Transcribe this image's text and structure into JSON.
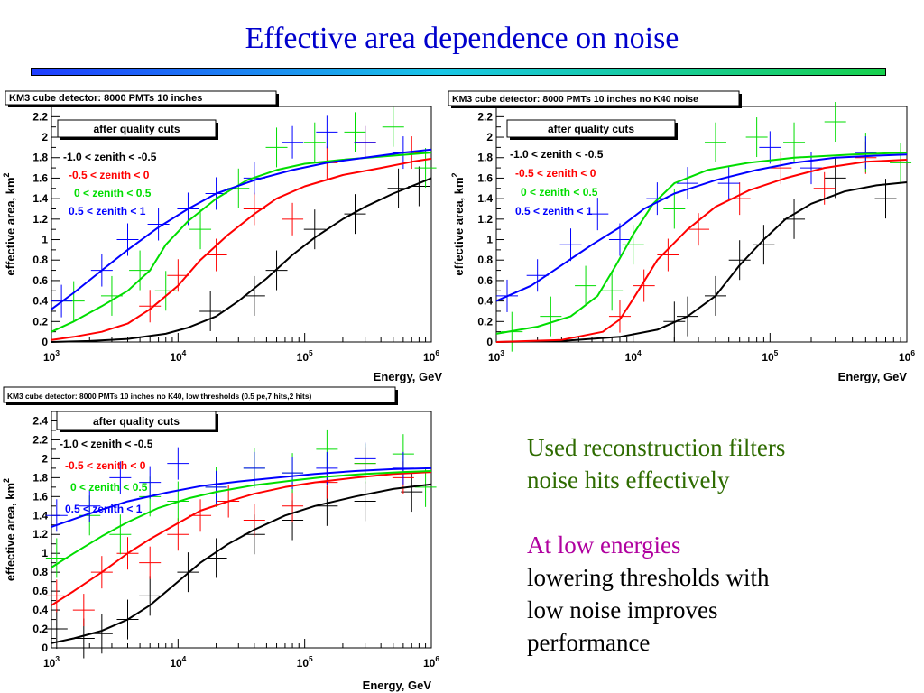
{
  "slide": {
    "title": "Effective area dependence on noise",
    "colors": {
      "title": "#0000cc",
      "bar_start": "#1e3cff",
      "bar_end": "#17d04c"
    }
  },
  "notes": {
    "line1": "Used reconstruction filters",
    "line2": "noise hits effectively",
    "line3": "At low energies",
    "line4": "lowering thresholds with",
    "line5": "low noise improves",
    "line6": "performance",
    "colors": {
      "main": "#2e6b00",
      "highlight": "#b0009f"
    }
  },
  "chart_data": [
    {
      "type": "line",
      "title": "KM3 cube detector: 8000 PMTs 10 inches",
      "box_label": "after quality cuts",
      "xlabel": "Energy, GeV",
      "ylabel": "effective area, km",
      "ylabel_sup": "2",
      "xscale": "log",
      "xlim": [
        1000,
        1000000
      ],
      "ylim": [
        0,
        2.3
      ],
      "xticks": [
        {
          "v": 1000,
          "m": "10",
          "e": "3"
        },
        {
          "v": 10000,
          "m": "10",
          "e": "4"
        },
        {
          "v": 100000,
          "m": "10",
          "e": "5"
        },
        {
          "v": 1000000,
          "m": "10",
          "e": "6"
        }
      ],
      "yticks": [
        0,
        0.2,
        0.4,
        0.6,
        0.8,
        1,
        1.2,
        1.4,
        1.6,
        1.8,
        2,
        2.2
      ],
      "series": [
        {
          "name": "-1.0 < zenith < -0.5",
          "color": "#000000",
          "x": [
            1000,
            2000,
            4000,
            8000,
            12000,
            20000,
            30000,
            50000,
            80000,
            120000,
            200000,
            300000,
            500000,
            800000,
            1000000
          ],
          "y": [
            0,
            0.01,
            0.03,
            0.08,
            0.14,
            0.25,
            0.4,
            0.62,
            0.85,
            1.02,
            1.2,
            1.32,
            1.45,
            1.55,
            1.6
          ],
          "points_x": [
            18000,
            40000,
            60000,
            120000,
            250000,
            550000,
            800000
          ],
          "points_y": [
            0.3,
            0.45,
            0.7,
            1.1,
            1.25,
            1.5,
            1.52
          ]
        },
        {
          "name": "-0.5 < zenith < 0",
          "color": "#ff0000",
          "x": [
            1000,
            1500,
            2500,
            4000,
            6000,
            10000,
            15000,
            25000,
            40000,
            60000,
            100000,
            200000,
            400000,
            700000,
            1000000
          ],
          "y": [
            0.02,
            0.05,
            0.1,
            0.18,
            0.32,
            0.55,
            0.8,
            1.05,
            1.25,
            1.4,
            1.52,
            1.63,
            1.7,
            1.76,
            1.79
          ],
          "points_x": [
            6000,
            10000,
            20000,
            40000,
            80000,
            150000,
            300000,
            700000
          ],
          "points_y": [
            0.35,
            0.65,
            0.85,
            1.3,
            1.2,
            1.75,
            1.95,
            1.85
          ]
        },
        {
          "name": "0 < zenith < 0.5",
          "color": "#00dd00",
          "x": [
            1000,
            1500,
            2500,
            4000,
            6000,
            8000,
            12000,
            20000,
            35000,
            60000,
            100000,
            200000,
            500000,
            1000000
          ],
          "y": [
            0.1,
            0.2,
            0.35,
            0.5,
            0.7,
            0.95,
            1.18,
            1.4,
            1.58,
            1.68,
            1.74,
            1.78,
            1.82,
            1.85
          ],
          "points_x": [
            1500,
            3000,
            5000,
            8000,
            15000,
            30000,
            60000,
            120000,
            250000,
            500000,
            900000
          ],
          "points_y": [
            0.4,
            0.45,
            0.7,
            0.5,
            1.1,
            1.5,
            1.9,
            1.95,
            2.05,
            2.1,
            1.7
          ]
        },
        {
          "name": "0.5 < zenith < 1",
          "color": "#0000ff",
          "x": [
            1000,
            1500,
            2500,
            4000,
            7000,
            12000,
            20000,
            40000,
            80000,
            150000,
            300000,
            600000,
            1000000
          ],
          "y": [
            0.32,
            0.48,
            0.7,
            0.9,
            1.12,
            1.3,
            1.45,
            1.58,
            1.68,
            1.75,
            1.8,
            1.85,
            1.88
          ],
          "points_x": [
            1200,
            2500,
            4000,
            7000,
            12000,
            20000,
            40000,
            80000,
            150000,
            300000,
            600000
          ],
          "points_y": [
            0.4,
            0.7,
            1.0,
            1.15,
            1.3,
            1.45,
            1.6,
            1.95,
            2.05,
            1.95,
            1.85
          ]
        }
      ]
    },
    {
      "type": "line",
      "title": "KM3 cube detector: 8000 PMTs 10 inches no K40 noise",
      "box_label": "after quality cuts",
      "xlabel": "Energy, GeV",
      "ylabel": "effective area, km",
      "ylabel_sup": "2",
      "xscale": "log",
      "xlim": [
        1000,
        1000000
      ],
      "ylim": [
        0,
        2.3
      ],
      "xticks": [
        {
          "v": 1000,
          "m": "10",
          "e": "3"
        },
        {
          "v": 10000,
          "m": "10",
          "e": "4"
        },
        {
          "v": 100000,
          "m": "10",
          "e": "5"
        },
        {
          "v": 1000000,
          "m": "10",
          "e": "6"
        }
      ],
      "yticks": [
        0,
        0.2,
        0.4,
        0.6,
        0.8,
        1,
        1.2,
        1.4,
        1.6,
        1.8,
        2,
        2.2
      ],
      "series": [
        {
          "name": "-1.0 < zenith < -0.5",
          "color": "#000000",
          "x": [
            1000,
            3000,
            8000,
            15000,
            25000,
            40000,
            60000,
            90000,
            130000,
            200000,
            350000,
            600000,
            1000000
          ],
          "y": [
            0,
            0.01,
            0.05,
            0.12,
            0.25,
            0.45,
            0.75,
            1.0,
            1.2,
            1.35,
            1.47,
            1.53,
            1.56
          ],
          "points_x": [
            20000,
            25000,
            40000,
            60000,
            90000,
            150000,
            300000,
            700000
          ],
          "points_y": [
            0.2,
            0.25,
            0.45,
            0.8,
            0.95,
            1.2,
            1.6,
            1.4
          ]
        },
        {
          "name": "-0.5 < zenith < 0",
          "color": "#ff0000",
          "x": [
            1000,
            3000,
            6000,
            8000,
            10000,
            15000,
            25000,
            40000,
            70000,
            130000,
            250000,
            500000,
            1000000
          ],
          "y": [
            0,
            0.02,
            0.1,
            0.22,
            0.42,
            0.8,
            1.1,
            1.32,
            1.48,
            1.6,
            1.7,
            1.76,
            1.78
          ],
          "points_x": [
            8000,
            12000,
            18000,
            30000,
            60000,
            120000,
            250000,
            500000
          ],
          "points_y": [
            0.25,
            0.55,
            0.85,
            1.1,
            1.4,
            1.7,
            1.5,
            1.8
          ]
        },
        {
          "name": "0 < zenith < 0.5",
          "color": "#00dd00",
          "x": [
            1000,
            2000,
            3500,
            5500,
            7500,
            10000,
            14000,
            20000,
            35000,
            70000,
            150000,
            400000,
            1000000
          ],
          "y": [
            0.08,
            0.15,
            0.25,
            0.45,
            0.75,
            1.05,
            1.35,
            1.55,
            1.68,
            1.75,
            1.8,
            1.83,
            1.85
          ],
          "points_x": [
            1300,
            2500,
            4500,
            7000,
            10000,
            20000,
            40000,
            80000,
            150000,
            300000,
            500000,
            900000
          ],
          "points_y": [
            0.1,
            0.25,
            0.55,
            0.5,
            0.95,
            1.3,
            1.95,
            2.0,
            1.95,
            2.15,
            1.85,
            1.75
          ]
        },
        {
          "name": "0.5 < zenith < 1",
          "color": "#0000ff",
          "x": [
            1000,
            1800,
            3000,
            5000,
            8000,
            12000,
            20000,
            40000,
            80000,
            150000,
            300000,
            600000,
            1000000
          ],
          "y": [
            0.4,
            0.55,
            0.75,
            0.95,
            1.12,
            1.3,
            1.45,
            1.58,
            1.68,
            1.75,
            1.8,
            1.82,
            1.83
          ],
          "points_x": [
            1200,
            2000,
            3500,
            5500,
            8000,
            15000,
            25000,
            50000,
            100000,
            200000,
            500000
          ],
          "points_y": [
            0.45,
            0.65,
            0.95,
            1.25,
            1.0,
            1.4,
            1.55,
            1.55,
            1.9,
            1.7,
            1.85
          ]
        }
      ]
    },
    {
      "type": "line",
      "title": "KM3 cube detector: 8000 PMTs 10 inches no K40, low thresholds (0.5 pe,7 hits,2 hits)",
      "box_label": "after quality cuts",
      "xlabel": "Energy, GeV",
      "ylabel": "effective area, km",
      "ylabel_sup": "2",
      "xscale": "log",
      "xlim": [
        1000,
        1000000
      ],
      "ylim": [
        0,
        2.5
      ],
      "xticks": [
        {
          "v": 1000,
          "m": "10",
          "e": "3"
        },
        {
          "v": 10000,
          "m": "10",
          "e": "4"
        },
        {
          "v": 100000,
          "m": "10",
          "e": "5"
        },
        {
          "v": 1000000,
          "m": "10",
          "e": "6"
        }
      ],
      "yticks": [
        0,
        0.2,
        0.4,
        0.6,
        0.8,
        1,
        1.2,
        1.4,
        1.6,
        1.8,
        2,
        2.2,
        2.4
      ],
      "series": [
        {
          "name": "-1.0 < zenith < -0.5",
          "color": "#000000",
          "x": [
            1000,
            1500,
            2500,
            4000,
            6000,
            10000,
            15000,
            25000,
            40000,
            70000,
            120000,
            250000,
            500000,
            1000000
          ],
          "y": [
            0.05,
            0.1,
            0.18,
            0.3,
            0.45,
            0.7,
            0.9,
            1.1,
            1.25,
            1.4,
            1.5,
            1.6,
            1.68,
            1.73
          ],
          "points_x": [
            1100,
            1800,
            2500,
            4000,
            6000,
            12000,
            20000,
            40000,
            80000,
            150000,
            300000,
            700000
          ],
          "points_y": [
            0.2,
            0.1,
            0.15,
            0.3,
            0.55,
            0.8,
            0.95,
            1.2,
            1.35,
            1.5,
            1.55,
            1.65
          ]
        },
        {
          "name": "-0.5 < zenith < 0",
          "color": "#ff0000",
          "x": [
            1000,
            1500,
            2500,
            4000,
            6000,
            10000,
            15000,
            25000,
            40000,
            70000,
            120000,
            250000,
            500000,
            1000000
          ],
          "y": [
            0.45,
            0.6,
            0.8,
            1.0,
            1.15,
            1.32,
            1.45,
            1.55,
            1.63,
            1.7,
            1.75,
            1.8,
            1.84,
            1.86
          ],
          "points_x": [
            1100,
            1800,
            2500,
            4000,
            6000,
            10000,
            15000,
            25000,
            40000,
            80000,
            150000,
            300000,
            600000
          ],
          "points_y": [
            0.55,
            0.4,
            0.8,
            1.0,
            0.9,
            1.2,
            1.4,
            1.55,
            1.35,
            1.5,
            1.75,
            1.95,
            1.8
          ]
        },
        {
          "name": "0 < zenith < 0.5",
          "color": "#00dd00",
          "x": [
            1000,
            1500,
            2500,
            4000,
            7000,
            12000,
            20000,
            40000,
            80000,
            150000,
            300000,
            600000,
            1000000
          ],
          "y": [
            0.85,
            1.0,
            1.18,
            1.33,
            1.48,
            1.58,
            1.65,
            1.72,
            1.77,
            1.81,
            1.84,
            1.86,
            1.87
          ],
          "points_x": [
            1100,
            2000,
            3500,
            6000,
            10000,
            20000,
            40000,
            80000,
            150000,
            300000,
            600000,
            900000
          ],
          "points_y": [
            0.95,
            1.4,
            1.2,
            1.6,
            1.55,
            1.7,
            1.9,
            1.85,
            2.1,
            1.95,
            2.05,
            1.7
          ]
        },
        {
          "name": "0.5 < zenith < 1",
          "color": "#0000ff",
          "x": [
            1000,
            2000,
            4000,
            8000,
            15000,
            30000,
            60000,
            120000,
            250000,
            500000,
            1000000
          ],
          "y": [
            1.28,
            1.42,
            1.55,
            1.64,
            1.71,
            1.76,
            1.8,
            1.84,
            1.87,
            1.89,
            1.9
          ],
          "points_x": [
            1100,
            2000,
            3500,
            6000,
            10000,
            20000,
            40000,
            80000,
            150000,
            300000,
            600000
          ],
          "points_y": [
            1.4,
            1.5,
            1.8,
            1.75,
            1.95,
            1.7,
            1.9,
            1.85,
            1.9,
            2.0,
            1.9
          ]
        }
      ]
    }
  ]
}
